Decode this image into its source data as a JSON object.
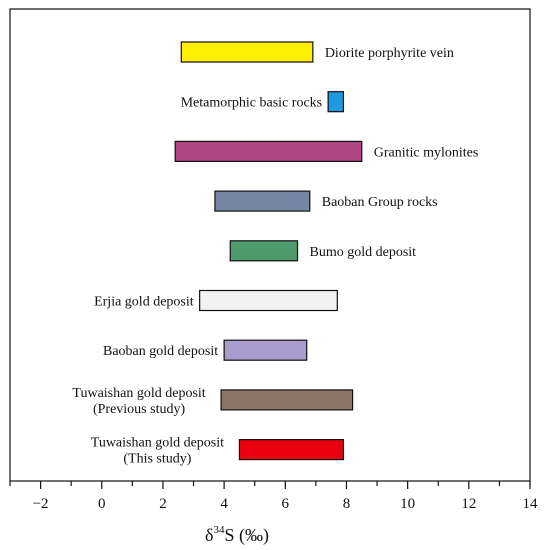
{
  "chart_data": {
    "type": "bar",
    "orientation": "horizontal-range",
    "xlabel": {
      "prefix": "δ",
      "sup": "34",
      "rest": "S (‰)"
    },
    "xlim": [
      -3,
      14
    ],
    "xticks": [
      "−2",
      "0",
      "2",
      "4",
      "6",
      "8",
      "10",
      "12",
      "14"
    ],
    "xtick_values": [
      -2,
      0,
      2,
      4,
      6,
      8,
      10,
      12,
      14
    ],
    "grid": false,
    "bars": [
      {
        "label": [
          "Diorite porphyrite vein"
        ],
        "label_side": "right",
        "start": 2.6,
        "end": 6.9,
        "color": "#ffef00"
      },
      {
        "label": [
          "Metamorphic basic rocks"
        ],
        "label_side": "left",
        "start": 7.4,
        "end": 7.9,
        "color": "#1e9be0"
      },
      {
        "label": [
          "Granitic mylonites"
        ],
        "label_side": "right",
        "start": 2.4,
        "end": 8.5,
        "color": "#b04684"
      },
      {
        "label": [
          "Baoban Group rocks"
        ],
        "label_side": "right",
        "start": 3.7,
        "end": 6.8,
        "color": "#7586a5"
      },
      {
        "label": [
          "Bumo gold deposit"
        ],
        "label_side": "right",
        "start": 4.2,
        "end": 6.4,
        "color": "#4d9b6b"
      },
      {
        "label": [
          "Erjia gold deposit"
        ],
        "label_side": "left",
        "start": 3.2,
        "end": 7.7,
        "color": "#f2f2f2"
      },
      {
        "label": [
          "Baoban gold deposit"
        ],
        "label_side": "left",
        "start": 4.0,
        "end": 6.7,
        "color": "#a79ccc"
      },
      {
        "label": [
          "Tuwaishan gold deposit",
          "(Previous study)"
        ],
        "label_side": "left",
        "start": 3.9,
        "end": 8.2,
        "color": "#8a7568"
      },
      {
        "label": [
          "Tuwaishan gold deposit",
          "(This study)"
        ],
        "label_side": "left",
        "start": 4.5,
        "end": 7.9,
        "color": "#e8000f"
      }
    ]
  }
}
